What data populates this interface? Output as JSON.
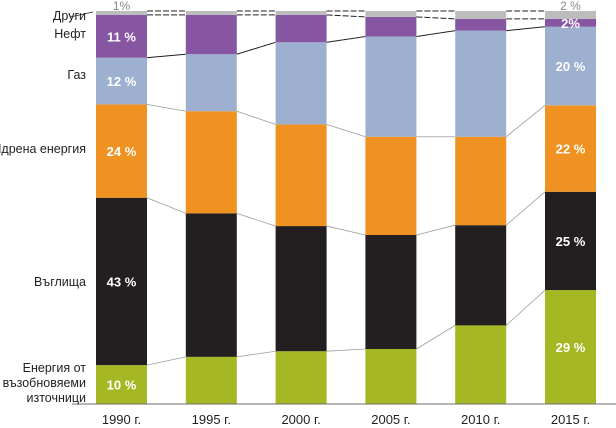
{
  "chart_data": {
    "type": "bar",
    "stacked": true,
    "percent": true,
    "title": "",
    "xlabel": "",
    "ylabel": "",
    "ylim": [
      0,
      100
    ],
    "grid": false,
    "legend_placement": "left (labels beside first bar)",
    "categories": [
      "1990 г.",
      "1995 г.",
      "2000 г.",
      "2005 г.",
      "2010 г.",
      "2015 г."
    ],
    "series": [
      {
        "name": "Енергия от възобновяеми източници",
        "legend_lines": [
          "Енергия от",
          "възобновяеми",
          "източници"
        ],
        "color": "#a5b823",
        "values": [
          10,
          12,
          13.5,
          14,
          20,
          29
        ],
        "labels": [
          "10 %",
          "",
          "",
          "",
          "",
          "29 %"
        ]
      },
      {
        "name": "Въглища",
        "legend_lines": [
          "Въглища"
        ],
        "color": "#231f20",
        "values": [
          43,
          36.5,
          32,
          29,
          25.5,
          25
        ],
        "labels": [
          "43 %",
          "",
          "",
          "",
          "",
          "25 %"
        ]
      },
      {
        "name": "Ядрена енергия",
        "legend_lines": [
          "Ядрена енергия"
        ],
        "color": "#ef9222",
        "values": [
          24,
          26,
          26,
          25,
          22.5,
          22
        ],
        "labels": [
          "24 %",
          "",
          "",
          "",
          "",
          "22 %"
        ]
      },
      {
        "name": "Газ",
        "legend_lines": [
          "Газ"
        ],
        "color": "#9db0d0",
        "values": [
          12,
          14.5,
          21,
          25.5,
          27,
          20
        ],
        "labels": [
          "12 %",
          "",
          "",
          "",
          "",
          "20 %"
        ]
      },
      {
        "name": "Нефт",
        "legend_lines": [
          "Нефт"
        ],
        "color": "#8656a2",
        "values": [
          11,
          10,
          7,
          5,
          3,
          2
        ],
        "labels": [
          "11 %",
          "",
          "",
          "",
          "",
          "2%"
        ]
      },
      {
        "name": "Други",
        "legend_lines": [
          "Други"
        ],
        "color": "#bcbcbc",
        "values": [
          1,
          1,
          1,
          1.5,
          2,
          2
        ],
        "labels": [
          "1%",
          "",
          "",
          "",
          "",
          "2 %"
        ]
      }
    ]
  }
}
